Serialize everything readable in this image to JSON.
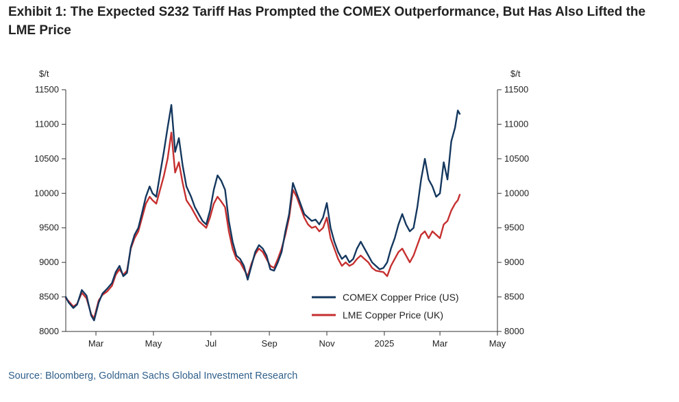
{
  "exhibit": {
    "title": "Exhibit 1: The Expected S232 Tariff Has Prompted the COMEX Outperformance, But Has Also Lifted the LME Price",
    "source": "Source: Bloomberg, Goldman Sachs Global Investment Research"
  },
  "chart_data": {
    "type": "line",
    "left_axis_unit": "$/t",
    "right_axis_unit": "$/t",
    "ylim": [
      8000,
      11500
    ],
    "yticks": [
      8000,
      8500,
      9000,
      9500,
      10000,
      10500,
      11000,
      11500
    ],
    "xlim": [
      "2024-01-29",
      "2025-05-01"
    ],
    "xticks": [
      {
        "date": "2024-03-01",
        "label": "Mar"
      },
      {
        "date": "2024-05-01",
        "label": "May"
      },
      {
        "date": "2024-07-01",
        "label": "Jul"
      },
      {
        "date": "2024-09-01",
        "label": "Sep"
      },
      {
        "date": "2024-11-01",
        "label": "Nov"
      },
      {
        "date": "2025-01-01",
        "label": "2025"
      },
      {
        "date": "2025-03-01",
        "label": "Mar"
      },
      {
        "date": "2025-05-01",
        "label": "May"
      }
    ],
    "legend_position": "bottom-right",
    "grid": false,
    "series": [
      {
        "name": "COMEX Copper Price (US)",
        "color": "#14375e",
        "points": [
          [
            "2024-01-29",
            8500
          ],
          [
            "2024-02-01",
            8420
          ],
          [
            "2024-02-06",
            8340
          ],
          [
            "2024-02-10",
            8390
          ],
          [
            "2024-02-15",
            8600
          ],
          [
            "2024-02-20",
            8520
          ],
          [
            "2024-02-25",
            8230
          ],
          [
            "2024-02-28",
            8160
          ],
          [
            "2024-03-04",
            8420
          ],
          [
            "2024-03-08",
            8550
          ],
          [
            "2024-03-13",
            8620
          ],
          [
            "2024-03-18",
            8700
          ],
          [
            "2024-03-22",
            8860
          ],
          [
            "2024-03-26",
            8950
          ],
          [
            "2024-03-30",
            8800
          ],
          [
            "2024-04-03",
            8850
          ],
          [
            "2024-04-07",
            9220
          ],
          [
            "2024-04-11",
            9400
          ],
          [
            "2024-04-15",
            9500
          ],
          [
            "2024-04-19",
            9720
          ],
          [
            "2024-04-23",
            9950
          ],
          [
            "2024-04-27",
            10100
          ],
          [
            "2024-04-30",
            10000
          ],
          [
            "2024-05-04",
            9950
          ],
          [
            "2024-05-08",
            10280
          ],
          [
            "2024-05-12",
            10600
          ],
          [
            "2024-05-16",
            10950
          ],
          [
            "2024-05-20",
            11280
          ],
          [
            "2024-05-24",
            10600
          ],
          [
            "2024-05-28",
            10800
          ],
          [
            "2024-06-01",
            10400
          ],
          [
            "2024-06-05",
            10100
          ],
          [
            "2024-06-10",
            9950
          ],
          [
            "2024-06-14",
            9800
          ],
          [
            "2024-06-18",
            9700
          ],
          [
            "2024-06-22",
            9600
          ],
          [
            "2024-06-26",
            9550
          ],
          [
            "2024-06-30",
            9750
          ],
          [
            "2024-07-04",
            10050
          ],
          [
            "2024-07-08",
            10260
          ],
          [
            "2024-07-12",
            10180
          ],
          [
            "2024-07-16",
            10050
          ],
          [
            "2024-07-20",
            9600
          ],
          [
            "2024-07-24",
            9300
          ],
          [
            "2024-07-28",
            9100
          ],
          [
            "2024-08-01",
            9050
          ],
          [
            "2024-08-05",
            8950
          ],
          [
            "2024-08-09",
            8750
          ],
          [
            "2024-08-13",
            8950
          ],
          [
            "2024-08-17",
            9150
          ],
          [
            "2024-08-21",
            9250
          ],
          [
            "2024-08-25",
            9200
          ],
          [
            "2024-08-29",
            9100
          ],
          [
            "2024-09-02",
            8900
          ],
          [
            "2024-09-06",
            8880
          ],
          [
            "2024-09-10",
            9000
          ],
          [
            "2024-09-14",
            9150
          ],
          [
            "2024-09-18",
            9450
          ],
          [
            "2024-09-22",
            9700
          ],
          [
            "2024-09-26",
            10150
          ],
          [
            "2024-09-30",
            10000
          ],
          [
            "2024-10-04",
            9850
          ],
          [
            "2024-10-08",
            9700
          ],
          [
            "2024-10-12",
            9650
          ],
          [
            "2024-10-16",
            9600
          ],
          [
            "2024-10-20",
            9620
          ],
          [
            "2024-10-24",
            9550
          ],
          [
            "2024-10-28",
            9650
          ],
          [
            "2024-11-01",
            9860
          ],
          [
            "2024-11-05",
            9500
          ],
          [
            "2024-11-09",
            9300
          ],
          [
            "2024-11-13",
            9150
          ],
          [
            "2024-11-17",
            9050
          ],
          [
            "2024-11-21",
            9100
          ],
          [
            "2024-11-25",
            9000
          ],
          [
            "2024-11-29",
            9050
          ],
          [
            "2024-12-03",
            9200
          ],
          [
            "2024-12-07",
            9300
          ],
          [
            "2024-12-11",
            9200
          ],
          [
            "2024-12-15",
            9100
          ],
          [
            "2024-12-19",
            9000
          ],
          [
            "2024-12-23",
            8950
          ],
          [
            "2024-12-27",
            8900
          ],
          [
            "2024-12-31",
            8920
          ],
          [
            "2025-01-04",
            9000
          ],
          [
            "2025-01-08",
            9200
          ],
          [
            "2025-01-12",
            9350
          ],
          [
            "2025-01-16",
            9550
          ],
          [
            "2025-01-20",
            9700
          ],
          [
            "2025-01-24",
            9550
          ],
          [
            "2025-01-28",
            9450
          ],
          [
            "2025-02-01",
            9500
          ],
          [
            "2025-02-05",
            9800
          ],
          [
            "2025-02-09",
            10200
          ],
          [
            "2025-02-13",
            10500
          ],
          [
            "2025-02-17",
            10200
          ],
          [
            "2025-02-21",
            10100
          ],
          [
            "2025-02-25",
            9950
          ],
          [
            "2025-03-01",
            10000
          ],
          [
            "2025-03-05",
            10450
          ],
          [
            "2025-03-09",
            10200
          ],
          [
            "2025-03-13",
            10750
          ],
          [
            "2025-03-17",
            10950
          ],
          [
            "2025-03-20",
            11200
          ],
          [
            "2025-03-22",
            11150
          ]
        ]
      },
      {
        "name": "LME Copper Price (UK)",
        "color": "#c62f2f",
        "points": [
          [
            "2024-01-29",
            8480
          ],
          [
            "2024-02-01",
            8440
          ],
          [
            "2024-02-06",
            8360
          ],
          [
            "2024-02-10",
            8400
          ],
          [
            "2024-02-15",
            8560
          ],
          [
            "2024-02-20",
            8480
          ],
          [
            "2024-02-25",
            8250
          ],
          [
            "2024-02-28",
            8190
          ],
          [
            "2024-03-04",
            8450
          ],
          [
            "2024-03-08",
            8530
          ],
          [
            "2024-03-13",
            8580
          ],
          [
            "2024-03-18",
            8660
          ],
          [
            "2024-03-22",
            8820
          ],
          [
            "2024-03-26",
            8900
          ],
          [
            "2024-03-30",
            8820
          ],
          [
            "2024-04-03",
            8880
          ],
          [
            "2024-04-07",
            9200
          ],
          [
            "2024-04-11",
            9350
          ],
          [
            "2024-04-15",
            9450
          ],
          [
            "2024-04-19",
            9650
          ],
          [
            "2024-04-23",
            9850
          ],
          [
            "2024-04-27",
            9950
          ],
          [
            "2024-04-30",
            9900
          ],
          [
            "2024-05-04",
            9850
          ],
          [
            "2024-05-08",
            10050
          ],
          [
            "2024-05-12",
            10250
          ],
          [
            "2024-05-16",
            10500
          ],
          [
            "2024-05-20",
            10880
          ],
          [
            "2024-05-24",
            10300
          ],
          [
            "2024-05-28",
            10450
          ],
          [
            "2024-06-01",
            10150
          ],
          [
            "2024-06-05",
            9900
          ],
          [
            "2024-06-10",
            9800
          ],
          [
            "2024-06-14",
            9700
          ],
          [
            "2024-06-18",
            9600
          ],
          [
            "2024-06-22",
            9550
          ],
          [
            "2024-06-26",
            9500
          ],
          [
            "2024-06-30",
            9650
          ],
          [
            "2024-07-04",
            9850
          ],
          [
            "2024-07-08",
            9950
          ],
          [
            "2024-07-12",
            9880
          ],
          [
            "2024-07-16",
            9800
          ],
          [
            "2024-07-20",
            9450
          ],
          [
            "2024-07-24",
            9200
          ],
          [
            "2024-07-28",
            9050
          ],
          [
            "2024-08-01",
            9000
          ],
          [
            "2024-08-05",
            8900
          ],
          [
            "2024-08-09",
            8800
          ],
          [
            "2024-08-13",
            8980
          ],
          [
            "2024-08-17",
            9120
          ],
          [
            "2024-08-21",
            9200
          ],
          [
            "2024-08-25",
            9150
          ],
          [
            "2024-08-29",
            9050
          ],
          [
            "2024-09-02",
            8950
          ],
          [
            "2024-09-06",
            8920
          ],
          [
            "2024-09-10",
            9050
          ],
          [
            "2024-09-14",
            9200
          ],
          [
            "2024-09-18",
            9400
          ],
          [
            "2024-09-22",
            9650
          ],
          [
            "2024-09-26",
            10050
          ],
          [
            "2024-09-30",
            9950
          ],
          [
            "2024-10-04",
            9800
          ],
          [
            "2024-10-08",
            9650
          ],
          [
            "2024-10-12",
            9550
          ],
          [
            "2024-10-16",
            9500
          ],
          [
            "2024-10-20",
            9520
          ],
          [
            "2024-10-24",
            9450
          ],
          [
            "2024-10-28",
            9500
          ],
          [
            "2024-11-01",
            9650
          ],
          [
            "2024-11-05",
            9350
          ],
          [
            "2024-11-09",
            9200
          ],
          [
            "2024-11-13",
            9050
          ],
          [
            "2024-11-17",
            8950
          ],
          [
            "2024-11-21",
            9000
          ],
          [
            "2024-11-25",
            8950
          ],
          [
            "2024-11-29",
            8980
          ],
          [
            "2024-12-03",
            9050
          ],
          [
            "2024-12-07",
            9100
          ],
          [
            "2024-12-11",
            9050
          ],
          [
            "2024-12-15",
            9000
          ],
          [
            "2024-12-19",
            8920
          ],
          [
            "2024-12-23",
            8880
          ],
          [
            "2024-12-27",
            8870
          ],
          [
            "2024-12-31",
            8860
          ],
          [
            "2025-01-04",
            8800
          ],
          [
            "2025-01-08",
            8950
          ],
          [
            "2025-01-12",
            9050
          ],
          [
            "2025-01-16",
            9150
          ],
          [
            "2025-01-20",
            9200
          ],
          [
            "2025-01-24",
            9100
          ],
          [
            "2025-01-28",
            9000
          ],
          [
            "2025-02-01",
            9100
          ],
          [
            "2025-02-05",
            9250
          ],
          [
            "2025-02-09",
            9400
          ],
          [
            "2025-02-13",
            9450
          ],
          [
            "2025-02-17",
            9350
          ],
          [
            "2025-02-21",
            9450
          ],
          [
            "2025-02-25",
            9400
          ],
          [
            "2025-03-01",
            9350
          ],
          [
            "2025-03-05",
            9550
          ],
          [
            "2025-03-09",
            9600
          ],
          [
            "2025-03-13",
            9750
          ],
          [
            "2025-03-17",
            9850
          ],
          [
            "2025-03-20",
            9900
          ],
          [
            "2025-03-22",
            9980
          ]
        ]
      }
    ]
  }
}
